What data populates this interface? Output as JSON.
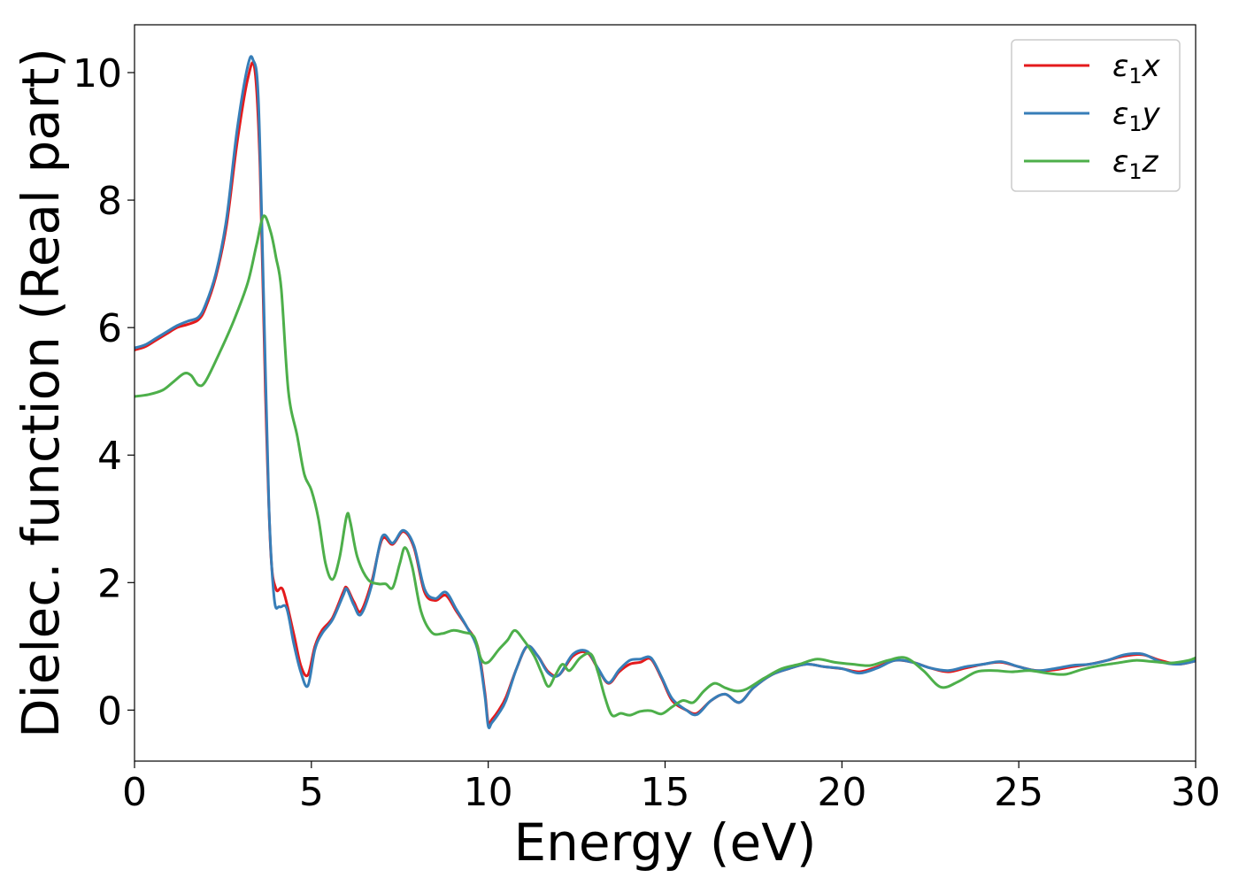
{
  "chart_data": {
    "type": "line",
    "xlabel": "Energy (eV)",
    "ylabel": "Dielec. function (Real part)",
    "xlim": [
      0,
      30
    ],
    "ylim": [
      -0.8,
      10.75
    ],
    "xticks": [
      0,
      5,
      10,
      15,
      20,
      25,
      30
    ],
    "yticks": [
      0,
      2,
      4,
      6,
      8,
      10
    ],
    "grid": false,
    "legend_position": "top-right",
    "series": [
      {
        "name": "ε1x",
        "legend_main": "ε",
        "legend_sub": "1",
        "legend_axis": "x",
        "color": "#e41a1c",
        "x": [
          0,
          0.3,
          0.6,
          0.9,
          1.2,
          1.5,
          1.8,
          2.0,
          2.3,
          2.6,
          2.9,
          3.2,
          3.4,
          3.55,
          3.7,
          3.85,
          4.0,
          4.2,
          4.5,
          4.7,
          4.9,
          5.1,
          5.3,
          5.6,
          5.9,
          6.0,
          6.2,
          6.4,
          6.7,
          7.0,
          7.3,
          7.6,
          7.9,
          8.2,
          8.5,
          8.8,
          9.1,
          9.4,
          9.7,
          9.9,
          10.0,
          10.1,
          10.3,
          10.5,
          10.8,
          11.1,
          11.4,
          11.7,
          12.0,
          12.4,
          12.8,
          13.1,
          13.4,
          13.7,
          14.0,
          14.3,
          14.6,
          14.9,
          15.2,
          15.6,
          15.9,
          16.3,
          16.7,
          17.1,
          17.5,
          18.0,
          18.5,
          19.0,
          19.5,
          20.0,
          20.5,
          21.0,
          21.5,
          22.0,
          22.5,
          23.0,
          23.5,
          24.0,
          24.5,
          25.0,
          25.5,
          26.0,
          26.5,
          27.0,
          27.5,
          28.0,
          28.5,
          29.0,
          29.5,
          30.0
        ],
        "y": [
          5.65,
          5.7,
          5.8,
          5.9,
          6.0,
          6.05,
          6.12,
          6.3,
          6.8,
          7.6,
          8.9,
          9.9,
          10.05,
          8.5,
          5.0,
          2.5,
          1.9,
          1.88,
          1.2,
          0.7,
          0.55,
          1.0,
          1.25,
          1.45,
          1.85,
          1.92,
          1.7,
          1.55,
          2.0,
          2.68,
          2.6,
          2.8,
          2.55,
          1.85,
          1.72,
          1.8,
          1.55,
          1.3,
          1.0,
          0.3,
          -0.2,
          -0.15,
          0.0,
          0.2,
          0.65,
          1.0,
          0.85,
          0.6,
          0.55,
          0.85,
          0.9,
          0.65,
          0.42,
          0.6,
          0.72,
          0.75,
          0.8,
          0.5,
          0.15,
          0.0,
          -0.05,
          0.15,
          0.25,
          0.12,
          0.35,
          0.55,
          0.65,
          0.72,
          0.68,
          0.65,
          0.6,
          0.68,
          0.78,
          0.75,
          0.66,
          0.6,
          0.66,
          0.72,
          0.75,
          0.68,
          0.62,
          0.63,
          0.68,
          0.72,
          0.78,
          0.85,
          0.87,
          0.78,
          0.72,
          0.77
        ]
      },
      {
        "name": "ε1y",
        "legend_main": "ε",
        "legend_sub": "1",
        "legend_axis": "y",
        "color": "#377eb8",
        "x": [
          0,
          0.3,
          0.6,
          0.9,
          1.2,
          1.5,
          1.8,
          2.0,
          2.3,
          2.6,
          2.9,
          3.2,
          3.35,
          3.5,
          3.65,
          3.8,
          3.95,
          4.1,
          4.3,
          4.5,
          4.7,
          4.9,
          5.1,
          5.3,
          5.6,
          5.9,
          6.0,
          6.2,
          6.4,
          6.7,
          7.0,
          7.3,
          7.6,
          7.9,
          8.2,
          8.5,
          8.8,
          9.1,
          9.4,
          9.7,
          9.9,
          10.0,
          10.1,
          10.3,
          10.5,
          10.8,
          11.1,
          11.4,
          11.7,
          12.0,
          12.4,
          12.8,
          13.1,
          13.4,
          13.7,
          14.0,
          14.3,
          14.6,
          14.9,
          15.2,
          15.6,
          15.9,
          16.3,
          16.7,
          17.1,
          17.5,
          18.0,
          18.5,
          19.0,
          19.5,
          20.0,
          20.5,
          21.0,
          21.5,
          22.0,
          22.5,
          23.0,
          23.5,
          24.0,
          24.5,
          25.0,
          25.5,
          26.0,
          26.5,
          27.0,
          27.5,
          28.0,
          28.5,
          29.0,
          29.5,
          30.0
        ],
        "y": [
          5.68,
          5.73,
          5.83,
          5.93,
          6.03,
          6.1,
          6.16,
          6.35,
          6.85,
          7.7,
          9.1,
          10.1,
          10.2,
          9.6,
          6.5,
          3.2,
          1.75,
          1.62,
          1.6,
          1.05,
          0.6,
          0.38,
          0.95,
          1.2,
          1.42,
          1.8,
          1.9,
          1.65,
          1.5,
          1.95,
          2.72,
          2.62,
          2.82,
          2.58,
          1.9,
          1.75,
          1.85,
          1.58,
          1.3,
          0.95,
          0.25,
          -0.25,
          -0.2,
          -0.05,
          0.15,
          0.65,
          1.0,
          0.85,
          0.58,
          0.55,
          0.88,
          0.92,
          0.66,
          0.43,
          0.63,
          0.78,
          0.8,
          0.82,
          0.52,
          0.18,
          0.0,
          -0.07,
          0.15,
          0.25,
          0.12,
          0.35,
          0.55,
          0.65,
          0.72,
          0.68,
          0.65,
          0.58,
          0.66,
          0.78,
          0.75,
          0.66,
          0.62,
          0.68,
          0.72,
          0.76,
          0.68,
          0.62,
          0.65,
          0.7,
          0.72,
          0.78,
          0.87,
          0.88,
          0.76,
          0.72,
          0.77
        ]
      },
      {
        "name": "ε1z",
        "legend_main": "ε",
        "legend_sub": "1",
        "legend_axis": "z",
        "color": "#4daf4a",
        "x": [
          0,
          0.4,
          0.8,
          1.1,
          1.4,
          1.6,
          1.8,
          2.0,
          2.4,
          2.8,
          3.2,
          3.45,
          3.65,
          3.85,
          4.0,
          4.15,
          4.35,
          4.6,
          4.8,
          5.0,
          5.2,
          5.4,
          5.6,
          5.8,
          6.0,
          6.1,
          6.3,
          6.6,
          6.9,
          7.1,
          7.3,
          7.5,
          7.65,
          7.85,
          8.1,
          8.4,
          8.7,
          9.0,
          9.3,
          9.6,
          9.8,
          10.0,
          10.3,
          10.55,
          10.75,
          11.0,
          11.3,
          11.5,
          11.7,
          11.9,
          12.1,
          12.3,
          12.6,
          12.9,
          13.1,
          13.3,
          13.5,
          13.75,
          14.0,
          14.3,
          14.6,
          14.9,
          15.2,
          15.5,
          15.8,
          16.1,
          16.4,
          16.7,
          17.0,
          17.3,
          17.8,
          18.3,
          18.8,
          19.3,
          19.8,
          20.3,
          20.8,
          21.3,
          21.8,
          22.3,
          22.8,
          23.3,
          23.8,
          24.3,
          24.8,
          25.3,
          25.8,
          26.3,
          26.8,
          27.3,
          27.8,
          28.3,
          28.8,
          29.3,
          29.8,
          30.0
        ],
        "y": [
          4.92,
          4.95,
          5.02,
          5.15,
          5.28,
          5.25,
          5.1,
          5.15,
          5.6,
          6.1,
          6.7,
          7.3,
          7.75,
          7.5,
          7.1,
          6.6,
          5.0,
          4.3,
          3.7,
          3.45,
          3.0,
          2.3,
          2.05,
          2.4,
          3.05,
          2.95,
          2.4,
          2.05,
          1.98,
          1.98,
          1.92,
          2.3,
          2.55,
          2.25,
          1.55,
          1.22,
          1.2,
          1.25,
          1.22,
          1.15,
          0.8,
          0.75,
          0.95,
          1.1,
          1.25,
          1.1,
          0.85,
          0.6,
          0.37,
          0.55,
          0.72,
          0.62,
          0.82,
          0.88,
          0.6,
          0.2,
          -0.08,
          -0.05,
          -0.08,
          -0.02,
          -0.01,
          -0.06,
          0.05,
          0.15,
          0.12,
          0.3,
          0.42,
          0.35,
          0.3,
          0.33,
          0.5,
          0.65,
          0.72,
          0.8,
          0.75,
          0.72,
          0.7,
          0.78,
          0.82,
          0.62,
          0.36,
          0.45,
          0.6,
          0.62,
          0.6,
          0.62,
          0.58,
          0.56,
          0.64,
          0.7,
          0.74,
          0.78,
          0.76,
          0.74,
          0.78,
          0.82
        ]
      }
    ]
  }
}
